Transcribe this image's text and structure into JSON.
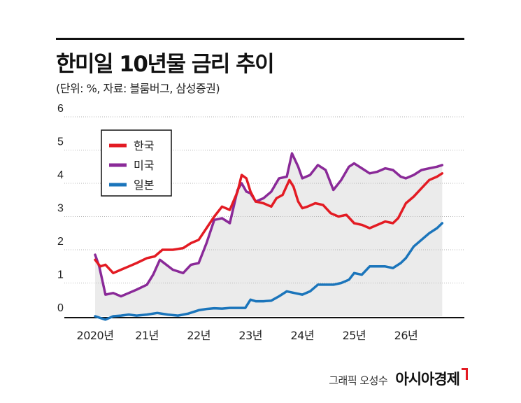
{
  "header": {
    "title": "한미일 10년물 금리 추이",
    "subtitle": "(단위: %, 자료: 블룸버그, 삼성증권)"
  },
  "footer": {
    "credit": "그래픽 오성수",
    "brand": "아시아경제"
  },
  "chart_data": {
    "type": "line",
    "title": "한미일 10년물 금리 추이",
    "units": "%",
    "yticks": [
      "0",
      "1",
      "2",
      "3",
      "4",
      "5",
      "6"
    ],
    "ylim": [
      0,
      6
    ],
    "xlim": [
      2020.0,
      2026.75
    ],
    "xticks": [
      {
        "label": "2020년",
        "x": 2020.0
      },
      {
        "label": "21년",
        "x": 2021.0
      },
      {
        "label": "22년",
        "x": 2022.0
      },
      {
        "label": "23년",
        "x": 2023.0
      },
      {
        "label": "24년",
        "x": 2024.0
      },
      {
        "label": "25년",
        "x": 2025.0
      },
      {
        "label": "26년",
        "x": 2026.0
      }
    ],
    "grid": true,
    "legend_position": "upper-left",
    "series": [
      {
        "name": "한국",
        "color": "#e31b23",
        "x": [
          2020.0,
          2020.1,
          2020.2,
          2020.35,
          2020.5,
          2020.65,
          2020.8,
          2021.0,
          2021.15,
          2021.3,
          2021.5,
          2021.7,
          2021.85,
          2022.0,
          2022.15,
          2022.3,
          2022.45,
          2022.6,
          2022.75,
          2022.83,
          2022.92,
          2023.0,
          2023.1,
          2023.25,
          2023.4,
          2023.5,
          2023.62,
          2023.75,
          2023.83,
          2023.92,
          2024.0,
          2024.1,
          2024.25,
          2024.4,
          2024.55,
          2024.7,
          2024.85,
          2025.0,
          2025.15,
          2025.3,
          2025.45,
          2025.6,
          2025.75,
          2025.85,
          2026.0,
          2026.15,
          2026.3,
          2026.45,
          2026.6,
          2026.7
        ],
        "y": [
          1.7,
          1.5,
          1.55,
          1.3,
          1.4,
          1.5,
          1.6,
          1.75,
          1.8,
          2.0,
          2.0,
          2.05,
          2.2,
          2.3,
          2.65,
          3.0,
          3.3,
          3.2,
          3.75,
          4.25,
          4.15,
          3.75,
          3.45,
          3.4,
          3.3,
          3.55,
          3.65,
          4.1,
          3.9,
          3.45,
          3.25,
          3.3,
          3.4,
          3.35,
          3.1,
          3.0,
          3.05,
          2.8,
          2.75,
          2.65,
          2.75,
          2.85,
          2.8,
          2.95,
          3.4,
          3.6,
          3.85,
          4.1,
          4.2,
          4.3
        ]
      },
      {
        "name": "미국",
        "color": "#8a2a98",
        "x": [
          2020.0,
          2020.08,
          2020.2,
          2020.35,
          2020.5,
          2020.65,
          2020.8,
          2021.0,
          2021.12,
          2021.25,
          2021.5,
          2021.7,
          2021.85,
          2022.0,
          2022.15,
          2022.3,
          2022.45,
          2022.6,
          2022.75,
          2022.83,
          2022.92,
          2023.0,
          2023.1,
          2023.25,
          2023.4,
          2023.55,
          2023.7,
          2023.8,
          2023.92,
          2024.0,
          2024.15,
          2024.3,
          2024.45,
          2024.6,
          2024.75,
          2024.9,
          2025.0,
          2025.15,
          2025.3,
          2025.45,
          2025.6,
          2025.75,
          2025.9,
          2026.0,
          2026.15,
          2026.3,
          2026.45,
          2026.6,
          2026.7
        ],
        "y": [
          1.85,
          1.5,
          0.65,
          0.7,
          0.6,
          0.7,
          0.8,
          0.95,
          1.25,
          1.7,
          1.4,
          1.3,
          1.55,
          1.6,
          2.2,
          2.9,
          2.95,
          2.8,
          3.8,
          4.0,
          3.75,
          3.7,
          3.45,
          3.55,
          3.75,
          4.15,
          4.2,
          4.9,
          4.5,
          4.15,
          4.25,
          4.55,
          4.4,
          3.8,
          4.1,
          4.5,
          4.6,
          4.45,
          4.3,
          4.35,
          4.45,
          4.4,
          4.2,
          4.15,
          4.25,
          4.4,
          4.45,
          4.5,
          4.55
        ]
      },
      {
        "name": "일본",
        "color": "#1b75bb",
        "x": [
          2020.0,
          2020.1,
          2020.2,
          2020.35,
          2020.5,
          2020.65,
          2020.8,
          2021.0,
          2021.2,
          2021.4,
          2021.6,
          2021.8,
          2022.0,
          2022.15,
          2022.3,
          2022.45,
          2022.6,
          2022.75,
          2022.9,
          2023.0,
          2023.1,
          2023.25,
          2023.4,
          2023.55,
          2023.7,
          2023.85,
          2024.0,
          2024.15,
          2024.3,
          2024.45,
          2024.6,
          2024.75,
          2024.9,
          2025.0,
          2025.15,
          2025.3,
          2025.45,
          2025.6,
          2025.75,
          2025.9,
          2026.0,
          2026.15,
          2026.3,
          2026.45,
          2026.6,
          2026.7
        ],
        "y": [
          0.0,
          -0.05,
          -0.1,
          0.0,
          0.02,
          0.05,
          0.02,
          0.05,
          0.1,
          0.05,
          0.02,
          0.08,
          0.18,
          0.22,
          0.24,
          0.23,
          0.25,
          0.25,
          0.25,
          0.5,
          0.45,
          0.45,
          0.47,
          0.6,
          0.75,
          0.7,
          0.65,
          0.75,
          0.95,
          0.95,
          0.95,
          1.0,
          1.1,
          1.3,
          1.25,
          1.5,
          1.5,
          1.5,
          1.45,
          1.6,
          1.75,
          2.1,
          2.3,
          2.5,
          2.65,
          2.8
        ]
      }
    ]
  }
}
